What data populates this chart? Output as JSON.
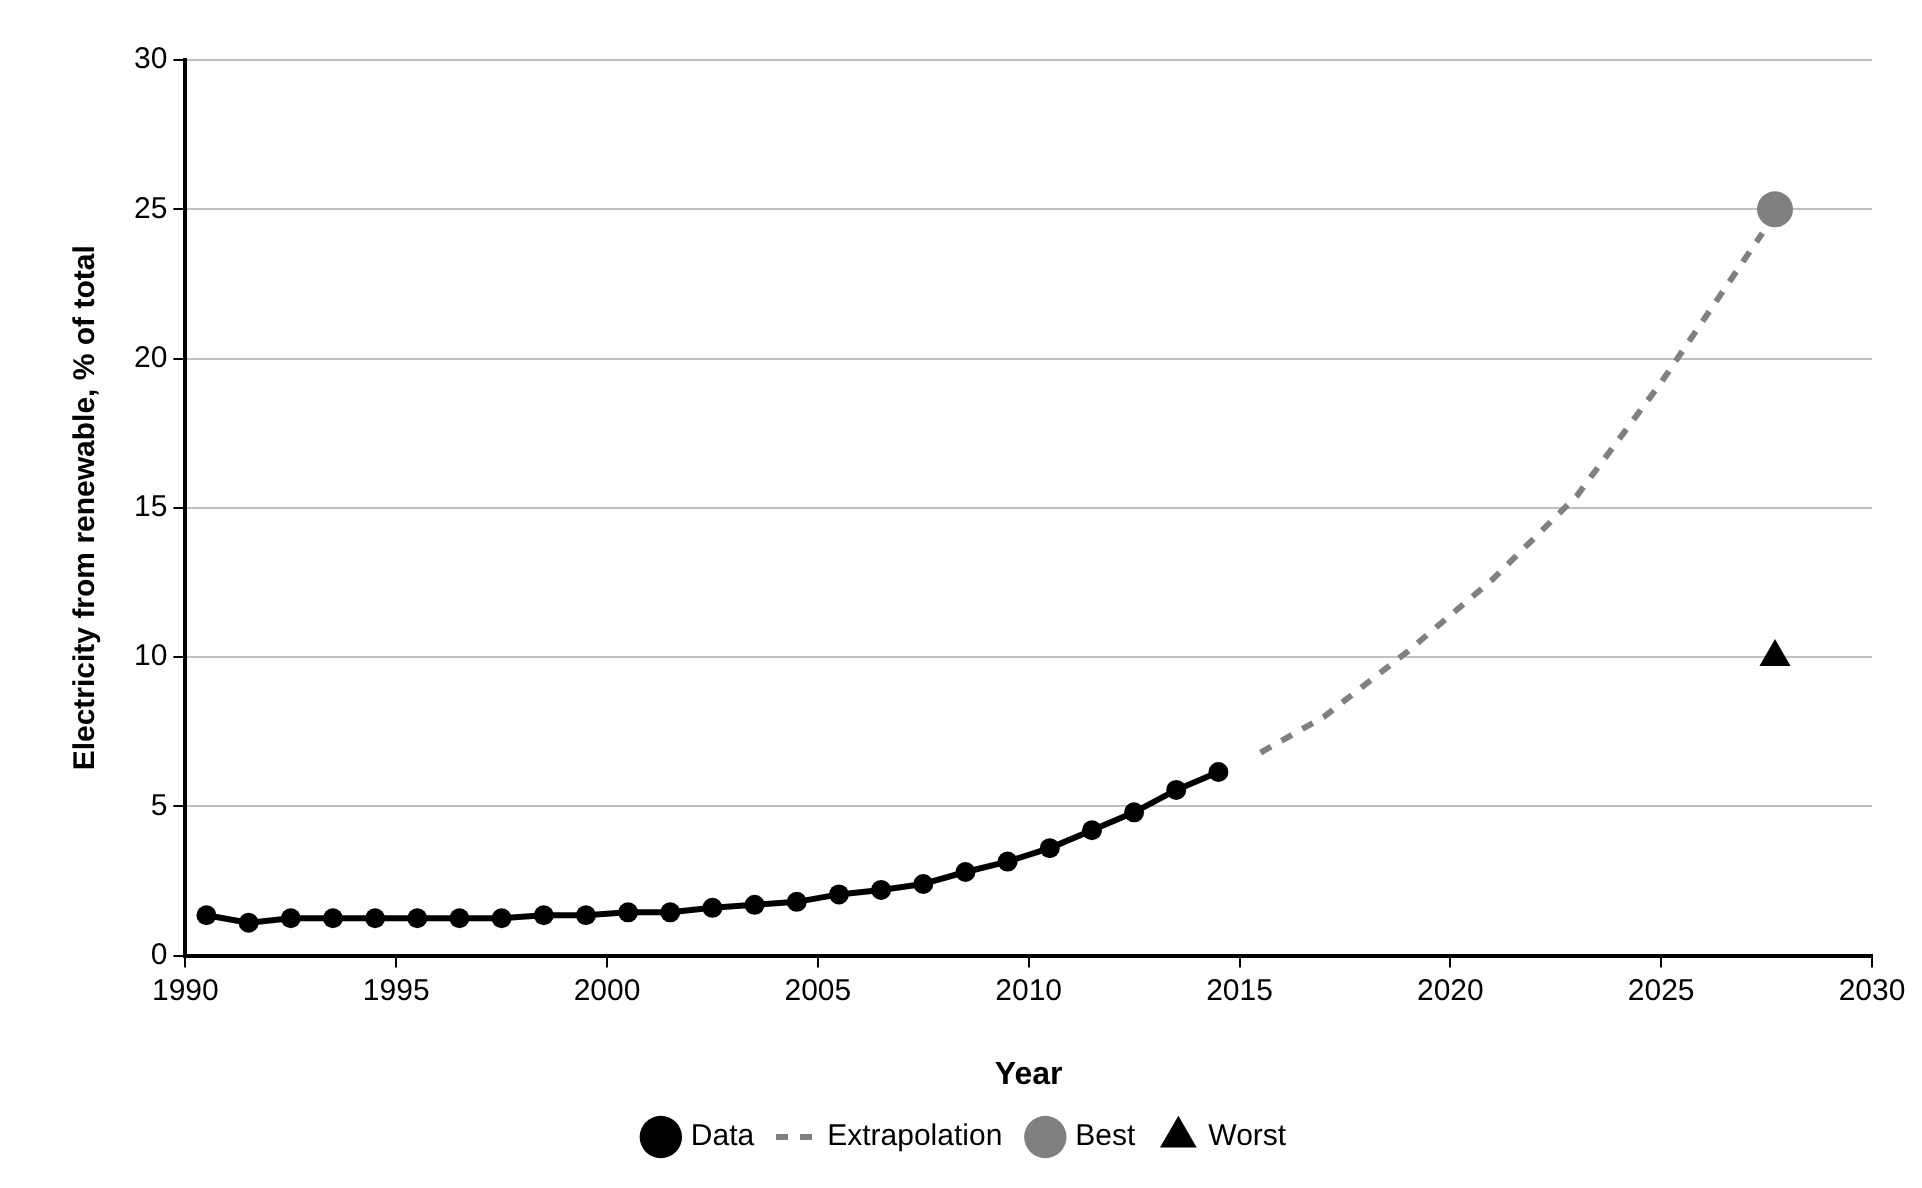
{
  "chart_data": {
    "type": "line",
    "xlabel": "Year",
    "ylabel": "Electricity from renewable, % of total",
    "xlim": [
      1990,
      2030
    ],
    "xticks": [
      1990,
      1995,
      2000,
      2005,
      2010,
      2015,
      2020,
      2025,
      2030
    ],
    "ylim": [
      0,
      30
    ],
    "yticks": [
      0,
      5,
      10,
      15,
      20,
      25,
      30
    ],
    "grid": "y",
    "legend": "bottom",
    "series": [
      {
        "name": "Data",
        "color": "#000000",
        "marker": "circle",
        "line_style": "solid",
        "x": [
          1990.5,
          1991.5,
          1992.5,
          1993.5,
          1994.5,
          1995.5,
          1996.5,
          1997.5,
          1998.5,
          1999.5,
          2000.5,
          2001.5,
          2002.5,
          2003.5,
          2004.5,
          2005.5,
          2006.5,
          2007.5,
          2008.5,
          2009.5,
          2010.5,
          2011.5,
          2012.5,
          2013.5,
          2014.5
        ],
        "values": [
          1.35,
          1.1,
          1.25,
          1.25,
          1.25,
          1.25,
          1.25,
          1.25,
          1.35,
          1.35,
          1.45,
          1.45,
          1.6,
          1.7,
          1.8,
          2.05,
          2.2,
          2.4,
          2.8,
          3.15,
          3.6,
          4.2,
          4.8,
          5.55,
          6.15
        ]
      },
      {
        "name": "Extrapolation",
        "color": "#808080",
        "marker": "none",
        "line_style": "dashed",
        "x": [
          2015.5,
          2017,
          2019,
          2021,
          2023,
          2025,
          2027.4
        ],
        "values": [
          6.8,
          8.0,
          10.2,
          12.6,
          15.4,
          19.2,
          24.2
        ]
      },
      {
        "name": "Best",
        "type": "scatter",
        "color": "#808080",
        "marker": "circle",
        "x": [
          2027.7
        ],
        "values": [
          25
        ]
      },
      {
        "name": "Worst",
        "type": "scatter",
        "color": "#000000",
        "marker": "triangle",
        "x": [
          2027.7
        ],
        "values": [
          10
        ]
      }
    ]
  }
}
